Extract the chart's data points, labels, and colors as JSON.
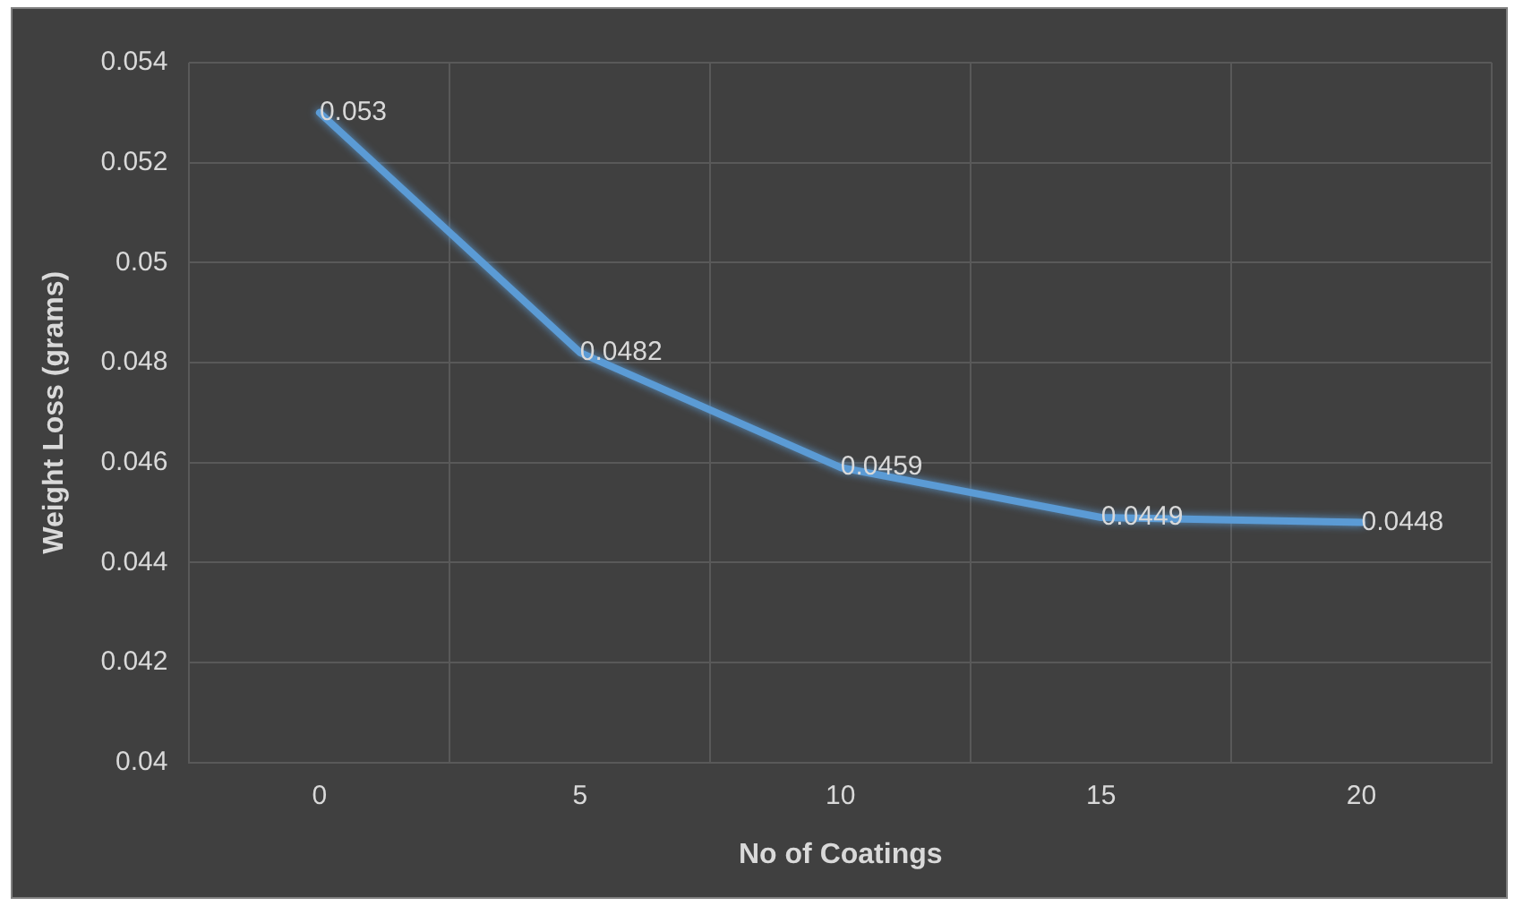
{
  "chart_data": {
    "type": "line",
    "xlabel": "No of Coatings",
    "ylabel": "Weight Loss (grams)",
    "categories": [
      "0",
      "5",
      "10",
      "15",
      "20"
    ],
    "series": [
      {
        "color": "#5b9bd5",
        "values": [
          0.053,
          0.0482,
          0.0459,
          0.0449,
          0.0448
        ]
      }
    ],
    "ylim": [
      0.04,
      0.054
    ],
    "yticks": [
      0.04,
      0.042,
      0.044,
      0.046,
      0.048,
      0.05,
      0.052,
      0.054
    ],
    "grid": true,
    "legend": false,
    "marker": "none",
    "line_style": "solid",
    "data_labels": true
  }
}
